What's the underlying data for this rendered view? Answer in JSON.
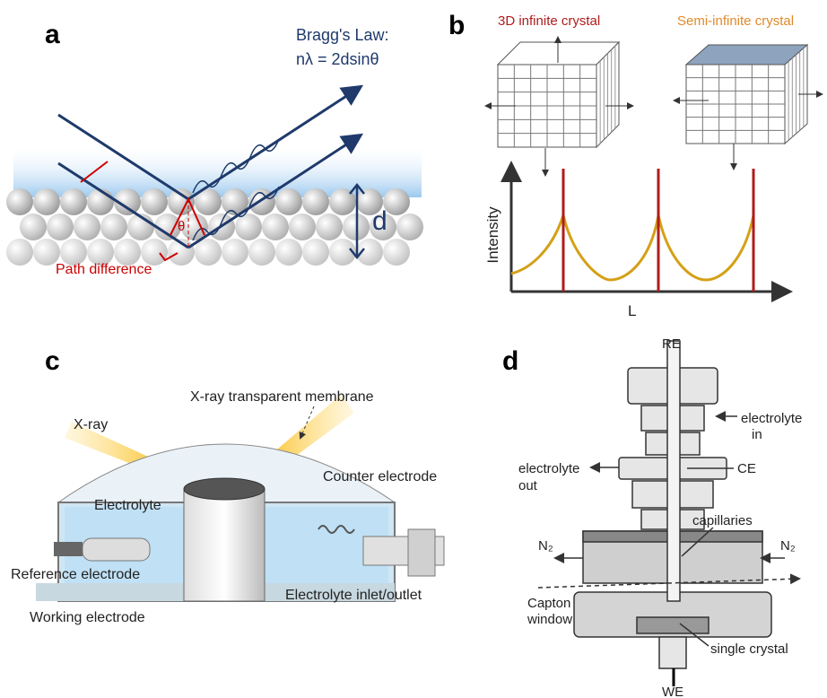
{
  "panel_a": {
    "label": "a",
    "law_title": "Bragg's Law:",
    "law_equation": "nλ = 2dsinθ",
    "spacing": "d",
    "angle": "θ",
    "path_difference": "Path difference"
  },
  "panel_b": {
    "label": "b",
    "crystal_3d": "3D infinite crystal",
    "crystal_semi": "Semi-infinite crystal",
    "y_axis": "Intensity",
    "x_axis": "L"
  },
  "panel_c": {
    "label": "c",
    "membrane": "X-ray transparent membrane",
    "xray": "X-ray",
    "counter_electrode": "Counter electrode",
    "electrolyte": "Electrolyte",
    "reference_electrode": "Reference electrode",
    "inlet_outlet": "Electrolyte inlet/outlet",
    "working_electrode": "Working electrode"
  },
  "panel_d": {
    "label": "d",
    "re": "RE",
    "electrolyte_in": [
      "electrolyte",
      "in"
    ],
    "electrolyte_out": [
      "electrolyte",
      "out"
    ],
    "ce": "CE",
    "capillaries": "capillaries",
    "n2_left": "N₂",
    "n2_right": "N₂",
    "capton_window": [
      "Capton",
      "window"
    ],
    "single_crystal": "single crystal",
    "we": "WE"
  }
}
